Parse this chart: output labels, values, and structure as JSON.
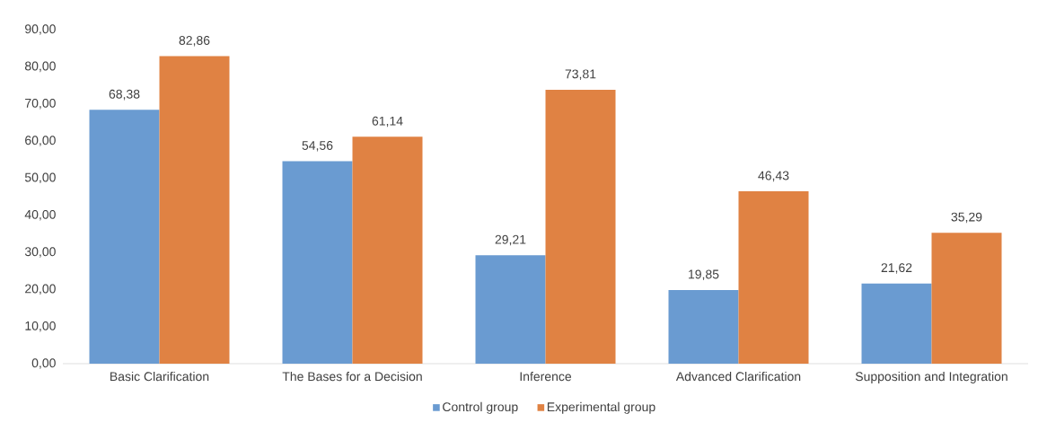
{
  "chart_data": {
    "type": "bar",
    "categories": [
      "Basic Clarification",
      "The Bases for a Decision",
      "Inference",
      "Advanced Clarification",
      "Supposition and Integration"
    ],
    "series": [
      {
        "name": "Control group",
        "color": "#6a9bd1",
        "values": [
          68.38,
          54.56,
          29.21,
          19.85,
          21.62
        ],
        "value_labels": [
          "68,38",
          "54,56",
          "29,21",
          "19,85",
          "21,62"
        ]
      },
      {
        "name": "Experimental group",
        "color": "#e08243",
        "values": [
          82.86,
          61.14,
          73.81,
          46.43,
          35.29
        ],
        "value_labels": [
          "82,86",
          "61,14",
          "73,81",
          "46,43",
          "35,29"
        ]
      }
    ],
    "ylim": [
      0,
      90
    ],
    "yticks": [
      {
        "value": 0,
        "label": "0,00"
      },
      {
        "value": 10,
        "label": "10,00"
      },
      {
        "value": 20,
        "label": "20,00"
      },
      {
        "value": 30,
        "label": "30,00"
      },
      {
        "value": 40,
        "label": "40,00"
      },
      {
        "value": 50,
        "label": "50,00"
      },
      {
        "value": 60,
        "label": "60,00"
      },
      {
        "value": 70,
        "label": "70,00"
      },
      {
        "value": 80,
        "label": "80,00"
      },
      {
        "value": 90,
        "label": "90,00"
      }
    ],
    "legend": "bottom"
  }
}
